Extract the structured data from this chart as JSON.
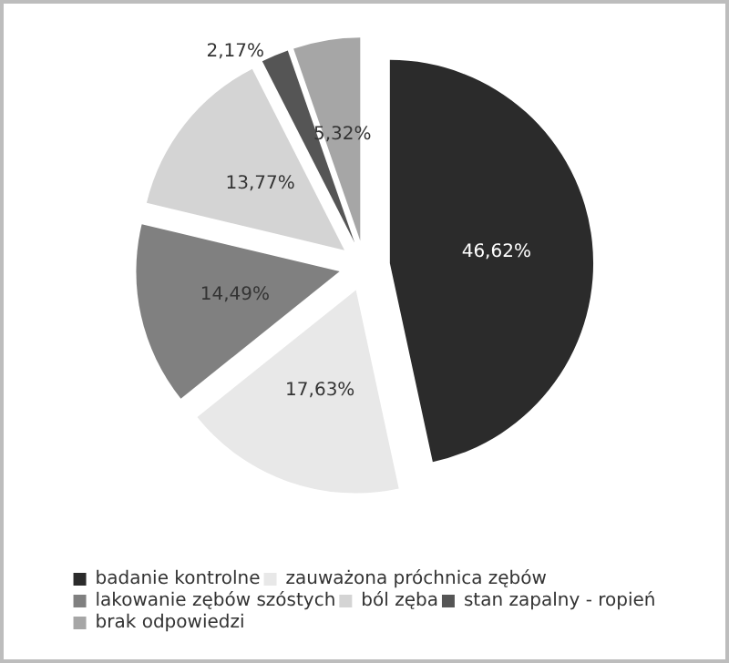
{
  "chart_data": {
    "type": "pie",
    "categories": [
      "badanie kontrolne",
      "zauważona próchnica zębów",
      "lakowanie zębów szóstych",
      "ból zęba",
      "stan zapalny - ropień",
      "brak odpowiedzi"
    ],
    "values": [
      46.62,
      17.63,
      14.49,
      13.77,
      2.17,
      5.32
    ],
    "value_labels": [
      "46,62%",
      "17,63%",
      "14,49%",
      "13,77%",
      "2,17%",
      "5,32%"
    ],
    "colors": [
      "#2b2b2b",
      "#e8e8e8",
      "#808080",
      "#d4d4d4",
      "#555555",
      "#a6a6a6"
    ],
    "legend": "bottom"
  }
}
